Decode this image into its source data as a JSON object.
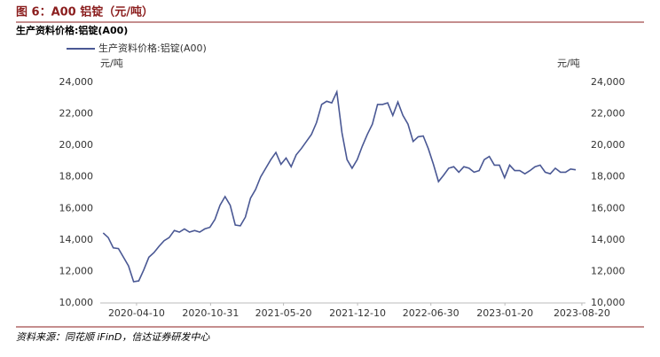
{
  "chart_data": {
    "type": "line",
    "title": "图 6：A00 铝锭（元/吨）",
    "subtitle": "生产资料价格:铝锭(A00)",
    "ylabel": "元/吨",
    "y2label": "元/吨",
    "source": "资料来源：同花顺 iFinD，信达证券研发中心",
    "x": [
      "2020-01-09",
      "2020-01-23",
      "2020-02-06",
      "2020-02-20",
      "2020-03-05",
      "2020-03-19",
      "2020-04-02",
      "2020-04-16",
      "2020-04-30",
      "2020-05-14",
      "2020-05-28",
      "2020-06-11",
      "2020-06-25",
      "2020-07-09",
      "2020-07-23",
      "2020-08-06",
      "2020-08-20",
      "2020-09-03",
      "2020-09-17",
      "2020-10-01",
      "2020-10-15",
      "2020-10-29",
      "2020-11-12",
      "2020-11-26",
      "2020-12-10",
      "2020-12-24",
      "2021-01-07",
      "2021-01-21",
      "2021-02-04",
      "2021-02-18",
      "2021-03-04",
      "2021-03-18",
      "2021-04-01",
      "2021-04-15",
      "2021-04-29",
      "2021-05-13",
      "2021-05-27",
      "2021-06-10",
      "2021-06-24",
      "2021-07-08",
      "2021-07-22",
      "2021-08-05",
      "2021-08-19",
      "2021-09-02",
      "2021-09-16",
      "2021-09-30",
      "2021-10-14",
      "2021-10-28",
      "2021-11-11",
      "2021-11-25",
      "2021-12-09",
      "2021-12-23",
      "2022-01-06",
      "2022-01-20",
      "2022-02-03",
      "2022-02-17",
      "2022-03-03",
      "2022-03-17",
      "2022-03-31",
      "2022-04-14",
      "2022-04-28",
      "2022-05-12",
      "2022-05-26",
      "2022-06-09",
      "2022-06-23",
      "2022-07-07",
      "2022-07-21",
      "2022-08-04",
      "2022-08-18",
      "2022-09-01",
      "2022-09-15",
      "2022-09-29",
      "2022-10-13",
      "2022-10-27",
      "2022-11-10",
      "2022-11-24",
      "2022-12-08",
      "2022-12-22",
      "2023-01-05",
      "2023-01-19",
      "2023-02-02",
      "2023-02-16",
      "2023-03-02",
      "2023-03-16",
      "2023-03-30",
      "2023-04-13",
      "2023-04-27",
      "2023-05-11",
      "2023-05-25",
      "2023-06-08",
      "2023-06-22",
      "2023-07-06",
      "2023-07-20",
      "2023-08-03"
    ],
    "series": [
      {
        "name": "生产资料价格:铝锭(A00)",
        "color": "#4a5894",
        "values": [
          14450,
          14150,
          13500,
          13450,
          12900,
          12350,
          11350,
          11400,
          12100,
          12900,
          13200,
          13600,
          13950,
          14150,
          14600,
          14500,
          14700,
          14500,
          14600,
          14500,
          14700,
          14800,
          15300,
          16200,
          16750,
          16200,
          14950,
          14900,
          15450,
          16650,
          17200,
          18000,
          18550,
          19100,
          19550,
          18800,
          19200,
          18650,
          19400,
          19800,
          20250,
          20700,
          21450,
          22600,
          22800,
          22700,
          23400,
          20800,
          19100,
          18550,
          19100,
          19950,
          20700,
          21350,
          22600,
          22600,
          22700,
          21900,
          22750,
          21900,
          21350,
          20250,
          20550,
          20600,
          19800,
          18800,
          17700,
          18100,
          18550,
          18650,
          18300,
          18650,
          18550,
          18300,
          18400,
          19100,
          19300,
          18750,
          18750,
          17950,
          18750,
          18400,
          18400,
          18200,
          18400,
          18650,
          18750,
          18300,
          18200,
          18550,
          18300,
          18300,
          18500,
          18450
        ]
      }
    ],
    "xlim": [
      "2020-01-01",
      "2023-08-30"
    ],
    "xticks": [
      "2020-04-10",
      "2020-10-31",
      "2021-05-20",
      "2021-12-10",
      "2022-06-30",
      "2023-01-20",
      "2023-08-20"
    ],
    "ylim": [
      10000,
      24000
    ],
    "yticks": [
      {
        "value": 10000,
        "label": "10,000"
      },
      {
        "value": 12000,
        "label": "12,000"
      },
      {
        "value": 14000,
        "label": "14,000"
      },
      {
        "value": 16000,
        "label": "16,000"
      },
      {
        "value": 18000,
        "label": "18,000"
      },
      {
        "value": 20000,
        "label": "20,000"
      },
      {
        "value": 22000,
        "label": "22,000"
      },
      {
        "value": 24000,
        "label": "24,000"
      }
    ],
    "y2lim": [
      10000,
      24000
    ],
    "y2ticks": [
      {
        "value": 10000,
        "label": "10,000"
      },
      {
        "value": 12000,
        "label": "12,000"
      },
      {
        "value": 14000,
        "label": "14,000"
      },
      {
        "value": 16000,
        "label": "16,000"
      },
      {
        "value": 18000,
        "label": "18,000"
      },
      {
        "value": 20000,
        "label": "20,000"
      },
      {
        "value": 22000,
        "label": "22,000"
      },
      {
        "value": 24000,
        "label": "24,000"
      }
    ],
    "grid": false
  }
}
